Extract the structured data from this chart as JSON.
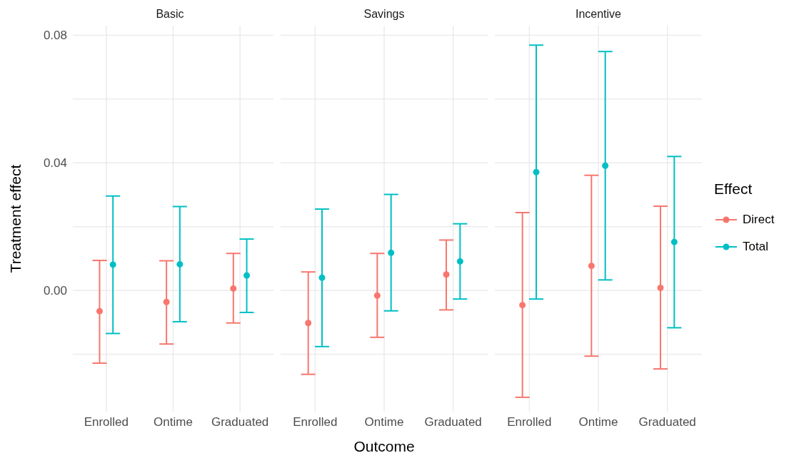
{
  "chart_data": [
    {
      "type": "scatter",
      "title": "Basic",
      "ylabel": "Treatment effect",
      "categories": [
        "Enrolled",
        "Ontime",
        "Graduated"
      ],
      "ylim": [
        -0.038,
        0.083
      ],
      "yticks": [
        {
          "value": -0.02,
          "label": null
        },
        {
          "value": 0,
          "label": "0.00"
        },
        {
          "value": 0.02,
          "label": null
        },
        {
          "value": 0.04,
          "label": "0.04"
        },
        {
          "value": 0.06,
          "label": null
        },
        {
          "value": 0.08,
          "label": "0.08"
        }
      ],
      "grid": true,
      "marker": "circle",
      "series": [
        {
          "color": "#f8766d",
          "values": [
            -0.0065,
            -0.0036,
            0.0006
          ],
          "errors": [
            [
              -0.0228,
              0.0094
            ],
            [
              -0.0168,
              0.0093
            ],
            [
              -0.0102,
              0.0116
            ]
          ]
        },
        {
          "color": "#00bfc4",
          "values": [
            0.0081,
            0.0082,
            0.0047
          ],
          "errors": [
            [
              -0.0135,
              0.0296
            ],
            [
              -0.0098,
              0.0263
            ],
            [
              -0.0069,
              0.0161
            ]
          ]
        }
      ]
    },
    {
      "type": "scatter",
      "title": "Savings",
      "xlabel": "Outcome",
      "categories": [
        "Enrolled",
        "Ontime",
        "Graduated"
      ],
      "ylim": [
        -0.038,
        0.083
      ],
      "yticks": [
        -0.02,
        0,
        0.02,
        0.04,
        0.06,
        0.08
      ],
      "tick_labels": "x",
      "grid": true,
      "marker": "circle",
      "series": [
        {
          "color": "#f8766d",
          "values": [
            -0.0102,
            -0.0016,
            0.005
          ],
          "errors": [
            [
              -0.0263,
              0.0058
            ],
            [
              -0.0147,
              0.0116
            ],
            [
              -0.0061,
              0.0158
            ]
          ]
        },
        {
          "color": "#00bfc4",
          "values": [
            0.004,
            0.0118,
            0.0091
          ],
          "errors": [
            [
              -0.0176,
              0.0255
            ],
            [
              -0.0064,
              0.0301
            ],
            [
              -0.0027,
              0.0209
            ]
          ]
        }
      ]
    },
    {
      "type": "scatter",
      "title": "Incentive",
      "categories": [
        "Enrolled",
        "Ontime",
        "Graduated"
      ],
      "ylim": [
        -0.038,
        0.083
      ],
      "yticks": [
        -0.02,
        0,
        0.02,
        0.04,
        0.06,
        0.08
      ],
      "tick_labels": "x",
      "grid": true,
      "marker": "circle",
      "legend": "right",
      "legend_title": "Effect",
      "series": [
        {
          "name": "Direct",
          "color": "#f8766d",
          "values": [
            -0.0046,
            0.0077,
            0.0008
          ],
          "errors": [
            [
              -0.0335,
              0.0244
            ],
            [
              -0.0206,
              0.0361
            ],
            [
              -0.0246,
              0.0264
            ]
          ]
        },
        {
          "name": "Total",
          "color": "#00bfc4",
          "values": [
            0.0371,
            0.0391,
            0.0152
          ],
          "errors": [
            [
              -0.0027,
              0.0769
            ],
            [
              0.0033,
              0.0749
            ],
            [
              -0.0117,
              0.042
            ]
          ]
        }
      ]
    }
  ]
}
